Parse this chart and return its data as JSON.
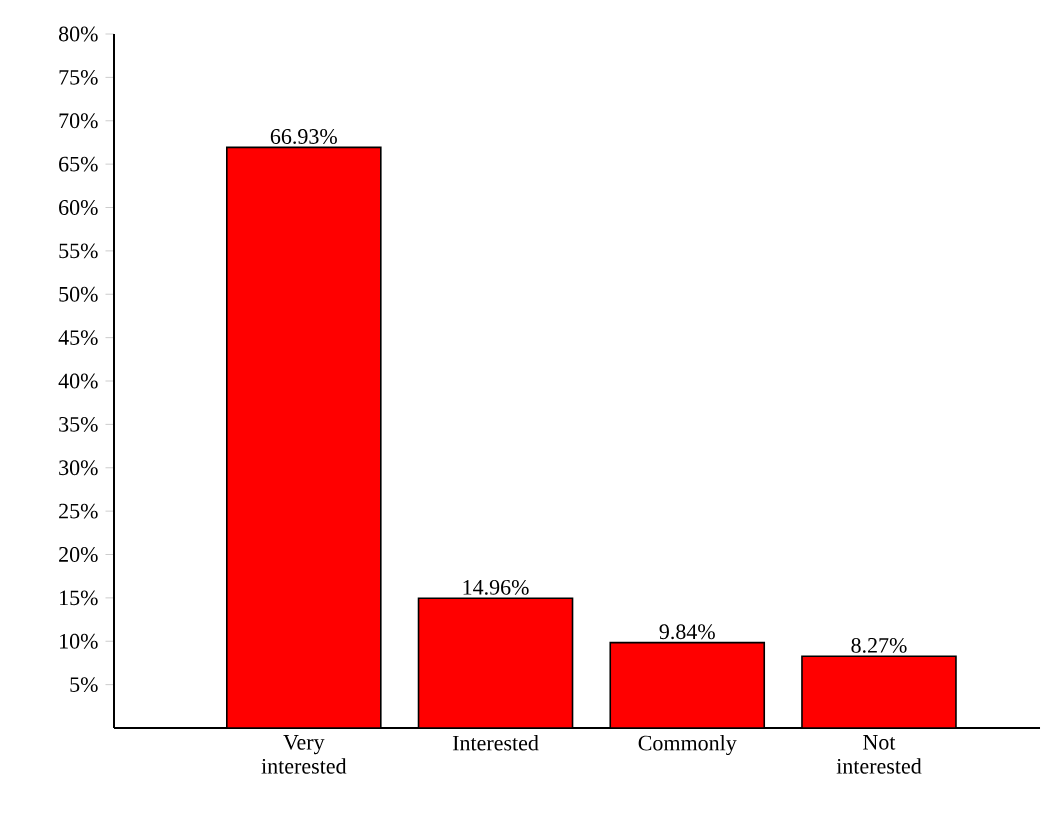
{
  "chart_data": {
    "type": "bar",
    "categories": [
      "Very interested",
      "Interested",
      "Commonly",
      "Not interested"
    ],
    "values": [
      66.93,
      14.96,
      9.84,
      8.27
    ],
    "value_labels": [
      "66.93%",
      "14.96%",
      "9.84%",
      "8.27%"
    ],
    "color": "#ff0000",
    "ylim": [
      0,
      80
    ],
    "yticks": [
      {
        "value": 5,
        "label": "5%"
      },
      {
        "value": 10,
        "label": "10%"
      },
      {
        "value": 15,
        "label": "15%"
      },
      {
        "value": 20,
        "label": "20%"
      },
      {
        "value": 25,
        "label": "25%"
      },
      {
        "value": 30,
        "label": "30%"
      },
      {
        "value": 35,
        "label": "35%"
      },
      {
        "value": 40,
        "label": "40%"
      },
      {
        "value": 45,
        "label": "45%"
      },
      {
        "value": 50,
        "label": "50%"
      },
      {
        "value": 55,
        "label": "55%"
      },
      {
        "value": 60,
        "label": "60%"
      },
      {
        "value": 65,
        "label": "65%"
      },
      {
        "value": 70,
        "label": "70%"
      },
      {
        "value": 75,
        "label": "75%"
      },
      {
        "value": 80,
        "label": "80%"
      }
    ],
    "grid": false
  }
}
